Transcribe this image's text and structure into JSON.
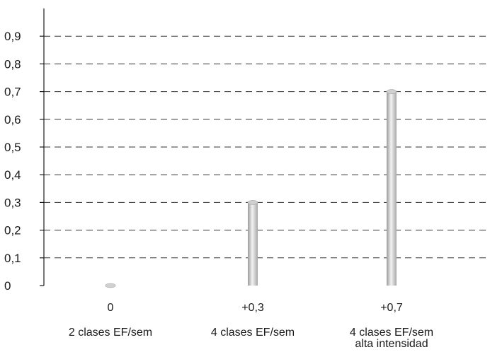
{
  "chart_data": {
    "type": "bar",
    "categories": [
      "2 clases EF/sem",
      "4 clases EF/sem",
      "4 clases EF/sem\nalta intensidad"
    ],
    "values": [
      0,
      0.3,
      0.7
    ],
    "value_labels": [
      "0",
      "+0,3",
      "+0,7"
    ],
    "yticks": [
      "0",
      "0,1",
      "0,2",
      "0,3",
      "0,4",
      "0,5",
      "0,6",
      "0,7",
      "0,8",
      "0,9"
    ],
    "ylim": [
      0,
      1
    ],
    "grid": true,
    "grid_style": "dashed",
    "title": "",
    "xlabel": "",
    "ylabel": "",
    "colors": {
      "bar": "#c8c8c8",
      "bar_highlight": "#f2f2f2",
      "axis": "#1a1a1a"
    }
  }
}
